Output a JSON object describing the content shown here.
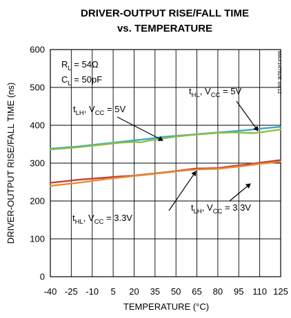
{
  "chart_data": {
    "type": "line",
    "title_line1": "DRIVER-OUTPUT RISE/FALL TIME",
    "title_line2": "vs. TEMPERATURE",
    "xlabel": "TEMPERATURE (°C)",
    "ylabel": "DRIVER-OUTPUT RISE/FALL TIME (ns)",
    "xlim": [
      -40,
      125
    ],
    "ylim": [
      0,
      600
    ],
    "x_ticks": [
      "-40",
      "-25",
      "-10",
      "5",
      "20",
      "35",
      "50",
      "65",
      "80",
      "95",
      "110",
      "125"
    ],
    "y_ticks": [
      "0",
      "100",
      "200",
      "300",
      "400",
      "500",
      "600"
    ],
    "grid": true,
    "conditions": {
      "rl_main": "R",
      "rl_sub": "L",
      "rl_rest": " = 54Ω",
      "cl_main": "C",
      "cl_sub": "L",
      "cl_rest": " = 50pF"
    },
    "watermark": "MAX14782E toc12",
    "series": [
      {
        "color": "#3aa8c8",
        "x": [
          -40,
          -30,
          -20,
          -10,
          0,
          10,
          20,
          30,
          40,
          50,
          60,
          70,
          80,
          90,
          100,
          110,
          125
        ],
        "y": [
          338,
          341,
          344,
          348,
          352,
          356,
          360,
          364,
          369,
          372,
          375,
          378,
          381,
          384,
          387,
          391,
          396
        ]
      },
      {
        "color": "#8cbf3f",
        "x": [
          -40,
          -30,
          -20,
          -10,
          0,
          10,
          20,
          25,
          30,
          40,
          50,
          60,
          70,
          80,
          90,
          100,
          105,
          110,
          125
        ],
        "y": [
          336,
          339,
          342,
          346,
          350,
          354,
          356,
          355,
          359,
          365,
          370,
          374,
          377,
          380,
          381,
          380,
          379,
          381,
          389
        ]
      },
      {
        "color": "#c0403a",
        "x": [
          -40,
          -30,
          -20,
          -10,
          0,
          10,
          20,
          30,
          40,
          50,
          60,
          65,
          70,
          80,
          90,
          100,
          110,
          125
        ],
        "y": [
          248,
          252,
          256,
          259,
          262,
          265,
          267,
          271,
          275,
          279,
          284,
          286,
          286,
          287,
          292,
          296,
          301,
          308
        ]
      },
      {
        "color": "#e88a2e",
        "x": [
          -40,
          -30,
          -20,
          -10,
          0,
          10,
          20,
          30,
          40,
          50,
          60,
          65,
          70,
          80,
          90,
          100,
          110,
          125
        ],
        "y": [
          240,
          244,
          248,
          253,
          258,
          262,
          266,
          270,
          274,
          278,
          282,
          283,
          284,
          285,
          289,
          293,
          298,
          304
        ]
      }
    ],
    "annotations": [
      {
        "main": "t",
        "sub": "HL",
        "mid": ", V",
        "sub2": "CC",
        "rest": " = 5V"
      },
      {
        "main": "t",
        "sub": "LH",
        "mid": ", V",
        "sub2": "CC",
        "rest": " = 5V"
      },
      {
        "main": "t",
        "sub": "LH",
        "mid": ", V",
        "sub2": "CC",
        "rest": " = 3.3V"
      },
      {
        "main": "t",
        "sub": "HL",
        "mid": ", V",
        "sub2": "CC",
        "rest": " = 3.3V"
      }
    ]
  }
}
